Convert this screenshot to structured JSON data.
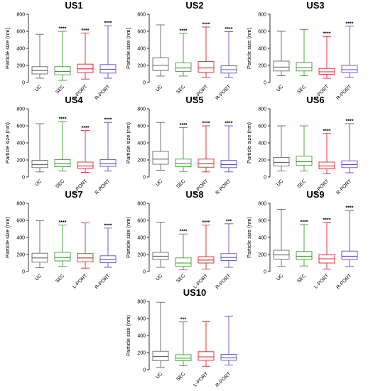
{
  "figure": {
    "series_colors": {
      "UC": "#666666",
      "SEC": "#3aa02c",
      "L-PORT": "#d62728",
      "R-PORT": "#5a4fcf"
    },
    "ylabel": "Particle size (nm)"
  },
  "chart_data": [
    {
      "type": "box",
      "title": "US1",
      "categories": [
        "UC",
        "SEC",
        "L-PORT",
        "R-PORT"
      ],
      "ylabel": "Particle size (nm)",
      "ylim": [
        0,
        800
      ],
      "yticks": [
        "0",
        "200",
        "400",
        "600",
        "800"
      ],
      "boxes": [
        {
          "name": "UC",
          "min": 50,
          "q1": 100,
          "median": 140,
          "q3": 185,
          "max": 565,
          "sig": ""
        },
        {
          "name": "SEC",
          "min": 25,
          "q1": 90,
          "median": 130,
          "q3": 185,
          "max": 600,
          "sig": "****"
        },
        {
          "name": "L-PORT",
          "min": 40,
          "q1": 115,
          "median": 160,
          "q3": 215,
          "max": 580,
          "sig": "****"
        },
        {
          "name": "R-PORT",
          "min": 50,
          "q1": 110,
          "median": 155,
          "q3": 210,
          "max": 665,
          "sig": "****"
        }
      ]
    },
    {
      "type": "box",
      "title": "US2",
      "categories": [
        "UC",
        "SEC",
        "L-PORT",
        "R-PORT"
      ],
      "ylabel": "Particle size (nm)",
      "ylim": [
        0,
        800
      ],
      "yticks": [
        "0",
        "200",
        "400",
        "600",
        "800"
      ],
      "boxes": [
        {
          "name": "UC",
          "min": 75,
          "q1": 140,
          "median": 200,
          "q3": 290,
          "max": 675,
          "sig": ""
        },
        {
          "name": "SEC",
          "min": 75,
          "q1": 130,
          "median": 170,
          "q3": 230,
          "max": 575,
          "sig": "****"
        },
        {
          "name": "L-PORT",
          "min": 60,
          "q1": 120,
          "median": 170,
          "q3": 245,
          "max": 650,
          "sig": "****"
        },
        {
          "name": "R-PORT",
          "min": 60,
          "q1": 110,
          "median": 150,
          "q3": 195,
          "max": 595,
          "sig": "****"
        }
      ]
    },
    {
      "type": "box",
      "title": "US3",
      "categories": [
        "UC",
        "SEC",
        "L-PORT",
        "R-PORT"
      ],
      "ylabel": "Particle size (nm)",
      "ylim": [
        0,
        800
      ],
      "yticks": [
        "0",
        "200",
        "400",
        "600",
        "800"
      ],
      "boxes": [
        {
          "name": "UC",
          "min": 80,
          "q1": 135,
          "median": 180,
          "q3": 250,
          "max": 600,
          "sig": ""
        },
        {
          "name": "SEC",
          "min": 80,
          "q1": 135,
          "median": 175,
          "q3": 235,
          "max": 620,
          "sig": ""
        },
        {
          "name": "L-PORT",
          "min": 50,
          "q1": 95,
          "median": 125,
          "q3": 165,
          "max": 540,
          "sig": "****"
        },
        {
          "name": "R-PORT",
          "min": 60,
          "q1": 115,
          "median": 150,
          "q3": 200,
          "max": 660,
          "sig": "****"
        }
      ]
    },
    {
      "type": "box",
      "title": "US4",
      "categories": [
        "UC",
        "SEC",
        "L-PORT",
        "R-PORT"
      ],
      "ylabel": "Particle size (nm)",
      "ylim": [
        0,
        800
      ],
      "yticks": [
        "0",
        "200",
        "400",
        "600",
        "800"
      ],
      "boxes": [
        {
          "name": "UC",
          "min": 60,
          "q1": 110,
          "median": 145,
          "q3": 195,
          "max": 625,
          "sig": ""
        },
        {
          "name": "SEC",
          "min": 70,
          "q1": 120,
          "median": 155,
          "q3": 205,
          "max": 650,
          "sig": "****"
        },
        {
          "name": "L-PORT",
          "min": 55,
          "q1": 100,
          "median": 130,
          "q3": 175,
          "max": 545,
          "sig": "****"
        },
        {
          "name": "R-PORT",
          "min": 70,
          "q1": 125,
          "median": 155,
          "q3": 205,
          "max": 640,
          "sig": "****"
        }
      ]
    },
    {
      "type": "box",
      "title": "US5",
      "categories": [
        "UC",
        "SEC",
        "L-PORT",
        "R-PORT"
      ],
      "ylabel": "Particle size (nm)",
      "ylim": [
        0,
        800
      ],
      "yticks": [
        "0",
        "200",
        "400",
        "600",
        "800"
      ],
      "boxes": [
        {
          "name": "UC",
          "min": 80,
          "q1": 150,
          "median": 210,
          "q3": 300,
          "max": 640,
          "sig": ""
        },
        {
          "name": "SEC",
          "min": 65,
          "q1": 120,
          "median": 160,
          "q3": 210,
          "max": 580,
          "sig": "****"
        },
        {
          "name": "L-PORT",
          "min": 60,
          "q1": 115,
          "median": 155,
          "q3": 210,
          "max": 600,
          "sig": "****"
        },
        {
          "name": "R-PORT",
          "min": 60,
          "q1": 110,
          "median": 145,
          "q3": 195,
          "max": 600,
          "sig": "****"
        }
      ]
    },
    {
      "type": "box",
      "title": "US6",
      "categories": [
        "UC",
        "SEC",
        "L-PORT",
        "R-PORT"
      ],
      "ylabel": "Particle size (nm)",
      "ylim": [
        0,
        800
      ],
      "yticks": [
        "0",
        "200",
        "400",
        "600",
        "800"
      ],
      "boxes": [
        {
          "name": "UC",
          "min": 70,
          "q1": 130,
          "median": 170,
          "q3": 230,
          "max": 600,
          "sig": ""
        },
        {
          "name": "SEC",
          "min": 70,
          "q1": 135,
          "median": 180,
          "q3": 245,
          "max": 600,
          "sig": ""
        },
        {
          "name": "L-PORT",
          "min": 40,
          "q1": 95,
          "median": 130,
          "q3": 175,
          "max": 510,
          "sig": "****"
        },
        {
          "name": "R-PORT",
          "min": 50,
          "q1": 110,
          "median": 145,
          "q3": 190,
          "max": 625,
          "sig": "****"
        }
      ]
    },
    {
      "type": "box",
      "title": "US7",
      "categories": [
        "UC",
        "SEC",
        "L-PORT",
        "R-PORT"
      ],
      "ylabel": "Particle size (nm)",
      "ylim": [
        0,
        800
      ],
      "yticks": [
        "0",
        "200",
        "400",
        "600",
        "800"
      ],
      "boxes": [
        {
          "name": "UC",
          "min": 45,
          "q1": 110,
          "median": 160,
          "q3": 215,
          "max": 595,
          "sig": ""
        },
        {
          "name": "SEC",
          "min": 60,
          "q1": 125,
          "median": 165,
          "q3": 225,
          "max": 545,
          "sig": "****"
        },
        {
          "name": "L-PORT",
          "min": 40,
          "q1": 115,
          "median": 160,
          "q3": 210,
          "max": 570,
          "sig": ""
        },
        {
          "name": "R-PORT",
          "min": 50,
          "q1": 105,
          "median": 140,
          "q3": 185,
          "max": 510,
          "sig": "****"
        }
      ]
    },
    {
      "type": "box",
      "title": "US8",
      "categories": [
        "UC",
        "SEC",
        "L-PORT",
        "R-PORT"
      ],
      "ylabel": "Particle size (nm)",
      "ylim": [
        0,
        800
      ],
      "yticks": [
        "0",
        "200",
        "400",
        "600",
        "800"
      ],
      "boxes": [
        {
          "name": "UC",
          "min": 50,
          "q1": 140,
          "median": 180,
          "q3": 225,
          "max": 580,
          "sig": ""
        },
        {
          "name": "SEC",
          "min": 20,
          "q1": 60,
          "median": 100,
          "q3": 160,
          "max": 440,
          "sig": "****"
        },
        {
          "name": "L-PORT",
          "min": 30,
          "q1": 100,
          "median": 135,
          "q3": 175,
          "max": 545,
          "sig": "****"
        },
        {
          "name": "R-PORT",
          "min": 50,
          "q1": 130,
          "median": 165,
          "q3": 210,
          "max": 560,
          "sig": "***"
        }
      ]
    },
    {
      "type": "box",
      "title": "US9",
      "categories": [
        "UC",
        "SEC",
        "L-PORT",
        "R-PORT"
      ],
      "ylabel": "Particle size (nm)",
      "ylim": [
        0,
        800
      ],
      "yticks": [
        "0",
        "200",
        "400",
        "600",
        "800"
      ],
      "boxes": [
        {
          "name": "UC",
          "min": 60,
          "q1": 145,
          "median": 195,
          "q3": 250,
          "max": 730,
          "sig": ""
        },
        {
          "name": "SEC",
          "min": 65,
          "q1": 140,
          "median": 180,
          "q3": 235,
          "max": 550,
          "sig": "****"
        },
        {
          "name": "L-PORT",
          "min": 30,
          "q1": 100,
          "median": 150,
          "q3": 200,
          "max": 575,
          "sig": "****"
        },
        {
          "name": "R-PORT",
          "min": 60,
          "q1": 140,
          "median": 180,
          "q3": 240,
          "max": 715,
          "sig": "****"
        }
      ]
    },
    {
      "type": "box",
      "title": "US10",
      "categories": [
        "UC",
        "SEC",
        "L-PORT",
        "R-PORT"
      ],
      "ylabel": "Particle size (nm)",
      "ylim": [
        0,
        800
      ],
      "yticks": [
        "0",
        "200",
        "400",
        "600",
        "800"
      ],
      "boxes": [
        {
          "name": "UC",
          "min": 30,
          "q1": 105,
          "median": 155,
          "q3": 215,
          "max": 790,
          "sig": ""
        },
        {
          "name": "SEC",
          "min": 45,
          "q1": 105,
          "median": 135,
          "q3": 175,
          "max": 560,
          "sig": "***"
        },
        {
          "name": "L-PORT",
          "min": 40,
          "q1": 110,
          "median": 150,
          "q3": 210,
          "max": 565,
          "sig": ""
        },
        {
          "name": "R-PORT",
          "min": 55,
          "q1": 110,
          "median": 140,
          "q3": 180,
          "max": 625,
          "sig": ""
        }
      ]
    }
  ]
}
